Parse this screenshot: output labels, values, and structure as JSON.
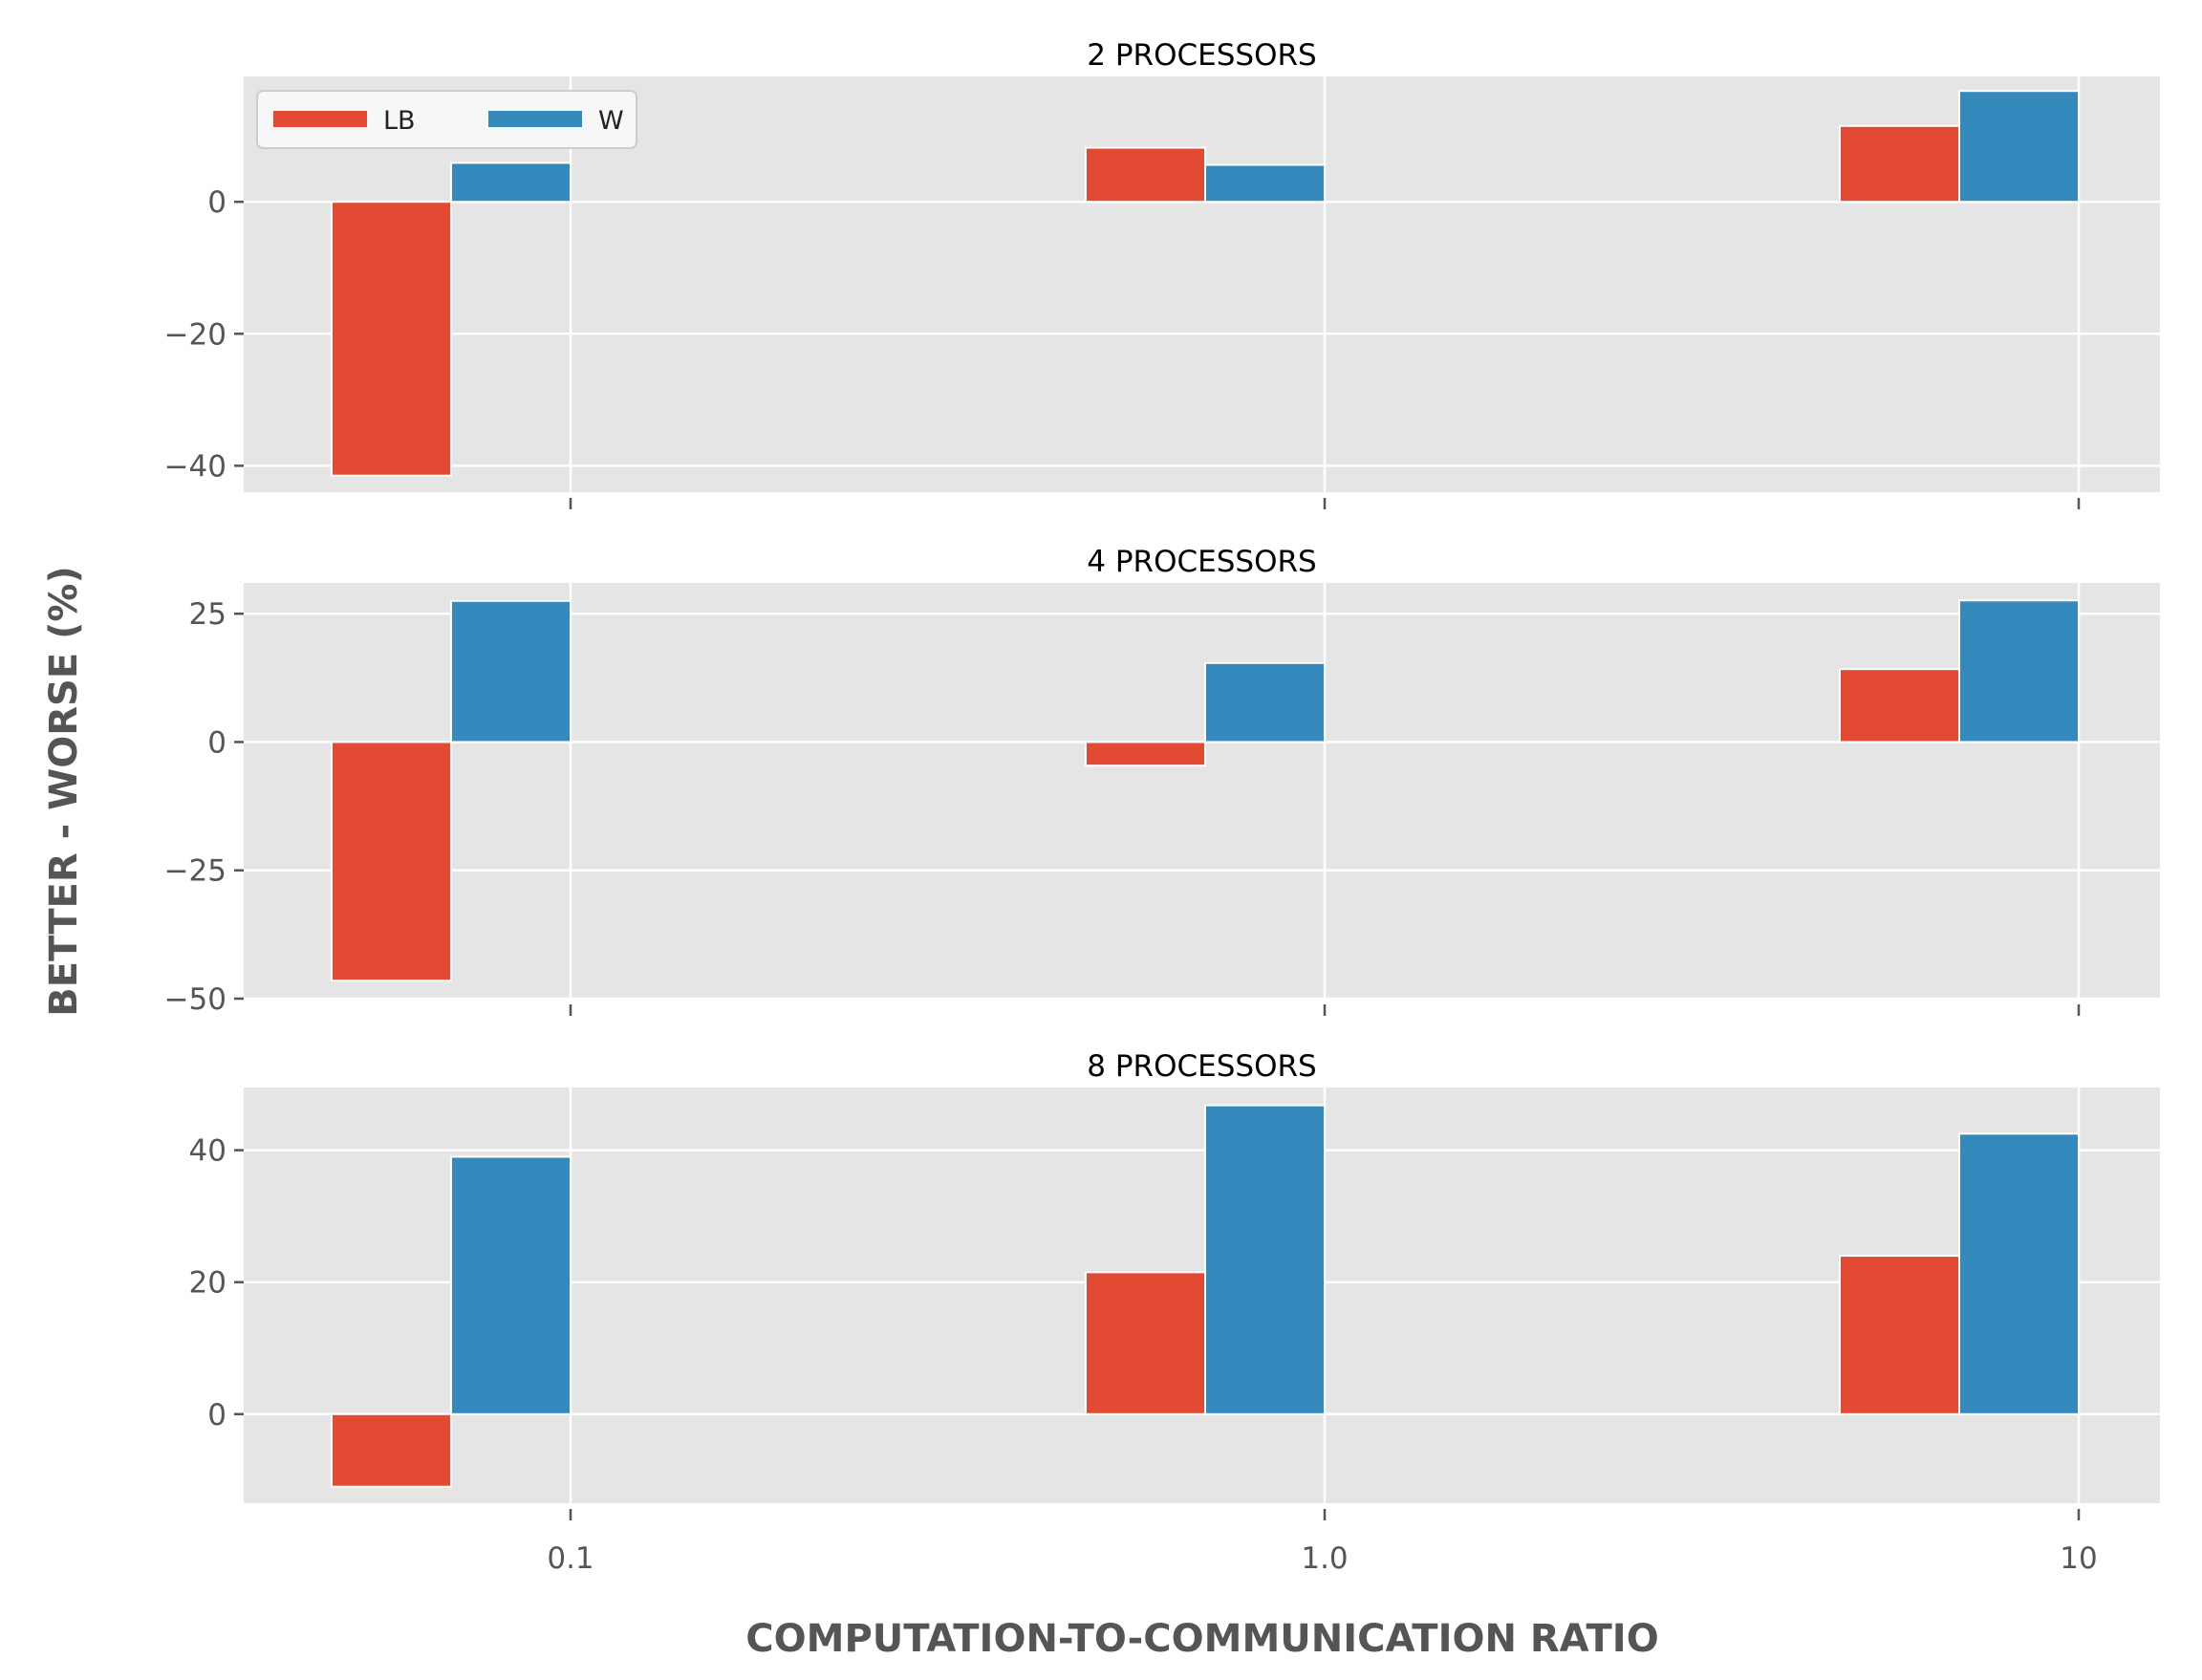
{
  "chart_data": {
    "type": "bar",
    "xlabel": "COMPUTATION-TO-COMMUNICATION RATIO",
    "ylabel": "BETTER - WORSE (%)",
    "categories": [
      "0.1",
      "1.0",
      "10"
    ],
    "legend": {
      "placement": "top-left",
      "entries": [
        "LB",
        "W"
      ]
    },
    "colors": {
      "LB": "#E24A33",
      "W": "#348ABD",
      "panel_bg": "#E5E5E5",
      "grid": "#FFFFFF"
    },
    "grid": true,
    "panels": [
      {
        "title": "2 PROCESSORS",
        "ylim": [
          -44,
          19
        ],
        "yticks": [
          -40,
          -20,
          0
        ],
        "series": [
          {
            "name": "LB",
            "values": [
              -41.5,
              8.2,
              11.5
            ]
          },
          {
            "name": "W",
            "values": [
              5.9,
              5.6,
              16.8
            ]
          }
        ]
      },
      {
        "title": "4 PROCESSORS",
        "ylim": [
          -50,
          31
        ],
        "yticks": [
          -50,
          -25,
          0,
          25
        ],
        "series": [
          {
            "name": "LB",
            "values": [
              -46.5,
              -4.6,
              14.2
            ]
          },
          {
            "name": "W",
            "values": [
              27.5,
              15.4,
              27.6
            ]
          }
        ]
      },
      {
        "title": "8 PROCESSORS",
        "ylim": [
          -13.5,
          49.5
        ],
        "yticks": [
          0,
          20,
          40
        ],
        "series": [
          {
            "name": "LB",
            "values": [
              -11.0,
              21.5,
              24.0
            ]
          },
          {
            "name": "W",
            "values": [
              39.0,
              46.8,
              42.5
            ]
          }
        ]
      }
    ]
  }
}
